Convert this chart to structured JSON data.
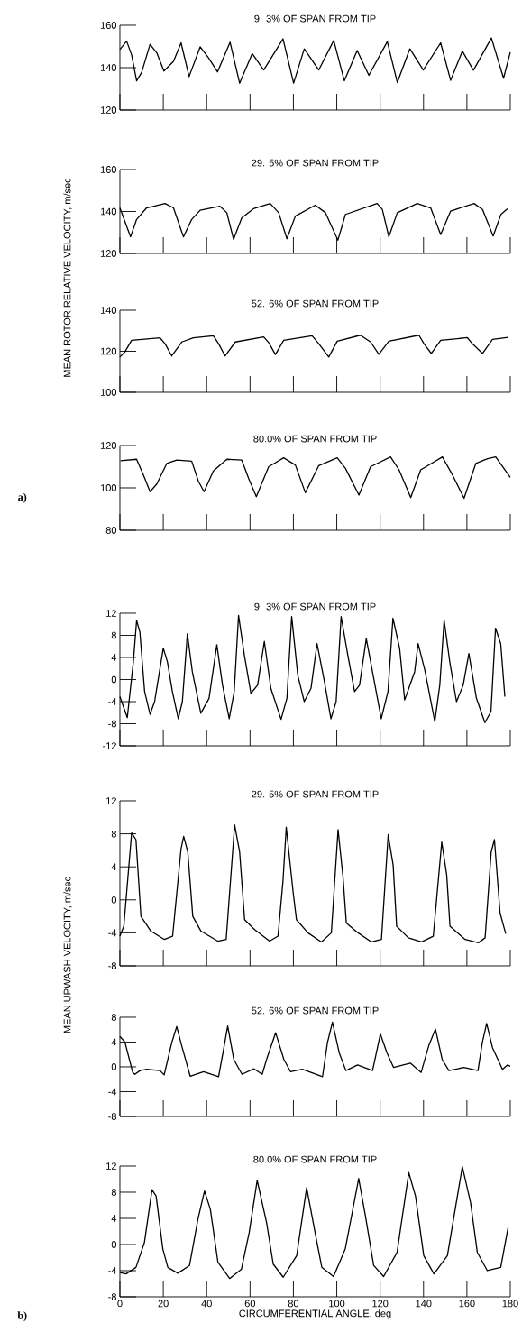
{
  "chart_data": [
    {
      "type": "line",
      "title": "9. 3% OF SPAN FROM TIP",
      "tick_labels": "y",
      "xlim": [
        0,
        180
      ],
      "xticks": [
        0,
        20,
        40,
        60,
        80,
        100,
        120,
        140,
        160,
        180
      ],
      "ylim": [
        120,
        160
      ],
      "yticks": [
        120,
        140,
        160
      ],
      "x": [
        0,
        3.1,
        5.4,
        7.7,
        10,
        13.9,
        17,
        20.3,
        24.7,
        28.2,
        31.9,
        37,
        40.8,
        45,
        50.8,
        55.2,
        61,
        66.3,
        75.2,
        80.1,
        85,
        91.7,
        98.6,
        103.5,
        109.4,
        114.8,
        123.3,
        127.9,
        133.7,
        139.9,
        147.9,
        152.5,
        157.9,
        163,
        171.3,
        176.9,
        180
      ],
      "series": [
        {
          "color": "#000000",
          "values": [
            148.6,
            152.5,
            146,
            133.8,
            137.7,
            151,
            147,
            138.4,
            143,
            151.7,
            135.8,
            149.8,
            144.7,
            138,
            152,
            132.7,
            146.6,
            138.9,
            153.6,
            132.7,
            148.9,
            138.9,
            152.8,
            133.8,
            148.1,
            136.4,
            152.3,
            133,
            148.9,
            138.9,
            151.7,
            134,
            147.8,
            138.8,
            154,
            135,
            147.3
          ]
        }
      ]
    },
    {
      "type": "line",
      "title": "29. 5% OF SPAN FROM TIP",
      "ylabel": "MEAN ROTOR RELATIVE VELOCITY, m/sec",
      "tick_labels": "y",
      "xlim": [
        0,
        180
      ],
      "xticks": [
        0,
        20,
        40,
        60,
        80,
        100,
        120,
        140,
        160,
        180
      ],
      "ylim": [
        120,
        160
      ],
      "yticks": [
        120,
        140,
        160
      ],
      "x": [
        0,
        4.9,
        7.7,
        12.3,
        20.8,
        24.7,
        29.3,
        33.1,
        37,
        46.2,
        49.3,
        52.4,
        56.2,
        61.6,
        69.3,
        73.2,
        77,
        80.9,
        90.1,
        94.8,
        100.5,
        104,
        118.6,
        121,
        124,
        127.9,
        137.1,
        143.3,
        147.9,
        152.5,
        163.3,
        167.2,
        172.1,
        175.7,
        178.7
      ],
      "series": [
        {
          "color": "#000000",
          "values": [
            141.7,
            127.9,
            136.2,
            141.7,
            143.8,
            141.7,
            127.9,
            136.2,
            140.6,
            142.5,
            139.4,
            126.7,
            137,
            141.3,
            143.8,
            139.4,
            127,
            137.8,
            143,
            139.4,
            126.3,
            138.6,
            143.8,
            141,
            127.9,
            139.4,
            143.8,
            141.7,
            129,
            140.2,
            143.8,
            141,
            128.3,
            138.6,
            141.3
          ]
        }
      ]
    },
    {
      "type": "line",
      "title": "52. 6% OF SPAN FROM TIP",
      "tick_labels": "y",
      "xlim": [
        0,
        180
      ],
      "xticks": [
        0,
        20,
        40,
        60,
        80,
        100,
        120,
        140,
        160,
        180
      ],
      "ylim": [
        100,
        140
      ],
      "yticks": [
        100,
        120,
        140
      ],
      "x": [
        0,
        2.3,
        5.4,
        18.5,
        20.8,
        23.9,
        28.5,
        33.9,
        43.1,
        45.5,
        48.5,
        53.2,
        66.3,
        68.6,
        71.7,
        75.5,
        88.6,
        91.7,
        96.3,
        100.2,
        110.9,
        115.6,
        119.4,
        124,
        137.9,
        140.2,
        143.6,
        147.9,
        160.2,
        162.5,
        167.2,
        171.8,
        179
      ],
      "series": [
        {
          "color": "#000000",
          "values": [
            117.2,
            119.7,
            125.3,
            126.5,
            123.7,
            117.7,
            124.5,
            126.5,
            127.5,
            123.7,
            117.7,
            124.5,
            127,
            124.2,
            118.4,
            125.3,
            127.5,
            123.7,
            117.2,
            124.9,
            127.8,
            124.5,
            118.5,
            124.9,
            127.8,
            123.7,
            118.9,
            125.3,
            126.6,
            123.7,
            118.9,
            125.8,
            126.8
          ]
        }
      ]
    },
    {
      "type": "line",
      "title": "80.0% OF SPAN FROM TIP",
      "annotations": [
        "a)"
      ],
      "tick_labels": "y",
      "xlim": [
        0,
        180
      ],
      "xticks": [
        0,
        20,
        40,
        60,
        80,
        100,
        120,
        140,
        160,
        180
      ],
      "ylim": [
        80,
        120
      ],
      "yticks": [
        80,
        100,
        120
      ],
      "x": [
        0.3,
        7.7,
        10.8,
        13.9,
        17,
        21.6,
        26.2,
        33.1,
        36.2,
        38.8,
        43.1,
        49.3,
        56.2,
        59.3,
        62.9,
        68.6,
        75.5,
        80.9,
        85.5,
        91.7,
        100.2,
        104,
        110.2,
        115.6,
        124.8,
        128.7,
        134.1,
        138.7,
        148.7,
        153.3,
        158.7,
        164.1,
        169.5,
        173.3,
        180
      ],
      "series": [
        {
          "color": "#000000",
          "values": [
            112.8,
            113.5,
            106.2,
            98.2,
            101.8,
            111.5,
            113.1,
            112.6,
            103.1,
            98.2,
            108,
            113.5,
            113.1,
            104.6,
            95.8,
            110,
            114.2,
            110.8,
            97.7,
            110.5,
            114.2,
            109.2,
            96.6,
            110,
            114.6,
            108.5,
            95.4,
            108.5,
            114.6,
            106.2,
            95.1,
            111.5,
            113.8,
            114.6,
            104.9
          ]
        }
      ]
    },
    {
      "type": "line",
      "title": "9. 3% OF SPAN FROM TIP",
      "tick_labels": "y",
      "xlim": [
        0,
        180
      ],
      "xticks": [
        0,
        20,
        40,
        60,
        80,
        100,
        120,
        140,
        160,
        180
      ],
      "ylim": [
        -12,
        12
      ],
      "yticks": [
        -12,
        -8,
        -4,
        0,
        4,
        8,
        12
      ],
      "x": [
        0,
        3.4,
        6.2,
        7.7,
        9.2,
        11.4,
        13.9,
        16,
        20,
        21.9,
        24.2,
        26.9,
        28.8,
        31.1,
        33.4,
        37.3,
        41.1,
        44.7,
        47.3,
        50.4,
        52.7,
        54.7,
        57.4,
        60.4,
        63.5,
        66.6,
        69.6,
        74.3,
        77,
        79.2,
        82,
        85,
        88.1,
        90.9,
        94.3,
        97.3,
        99.7,
        102,
        105.1,
        108.2,
        110.5,
        113.6,
        115.9,
        120.5,
        123.6,
        125.9,
        129,
        131.3,
        135.9,
        137.5,
        140.6,
        145.2,
        147.5,
        149.5,
        152.1,
        155.2,
        158.3,
        160.9,
        164.4,
        168.3,
        171.1,
        173.2,
        175.6,
        177.5
      ],
      "series": [
        {
          "color": "#000000",
          "values": [
            -3.1,
            -6.9,
            3.2,
            10.7,
            8.6,
            -2.2,
            -6.3,
            -4,
            5.7,
            3.2,
            -2.2,
            -7.1,
            -4,
            8.3,
            1.4,
            -6.1,
            -3.4,
            6.3,
            -1,
            -7.1,
            -2.2,
            11.6,
            4.4,
            -2.5,
            -1,
            6.9,
            -1.6,
            -7.2,
            -3.4,
            11.4,
            0.8,
            -4,
            -1.6,
            6.5,
            -0.4,
            -7.1,
            -4,
            11.4,
            4.4,
            -2.2,
            -1,
            7.4,
            2.6,
            -7.1,
            -2.2,
            11.1,
            5.6,
            -3.7,
            1.4,
            6.5,
            1.7,
            -7.6,
            -1,
            10.7,
            3.2,
            -4,
            -1,
            4.7,
            -3.4,
            -7.8,
            -5.8,
            9.3,
            6.5,
            -3.1
          ]
        }
      ]
    },
    {
      "type": "line",
      "title": "29. 5% OF SPAN FROM TIP",
      "ylabel": "MEAN UPWASH VELOCITY, m/sec",
      "tick_labels": "y",
      "xlim": [
        0,
        180
      ],
      "xticks": [
        0,
        20,
        40,
        60,
        80,
        100,
        120,
        140,
        160,
        180
      ],
      "ylim": [
        -8,
        12
      ],
      "yticks": [
        -8,
        -4,
        0,
        4,
        8,
        12
      ],
      "x": [
        0,
        1.8,
        5.4,
        7.4,
        9.7,
        14.3,
        20.5,
        24.3,
        28.2,
        29.4,
        31.3,
        33.6,
        37.4,
        45.1,
        49,
        52.9,
        55.2,
        57.5,
        62.1,
        69,
        72.9,
        75.2,
        76.7,
        79.8,
        81.4,
        86.7,
        92.9,
        97.5,
        100.6,
        102.9,
        104.4,
        109.8,
        116,
        120.6,
        123.7,
        126,
        127.6,
        133,
        139.1,
        144.5,
        148.4,
        150.7,
        152.2,
        159.2,
        165.3,
        168.4,
        171.2,
        172.7,
        175.3,
        177.9
      ],
      "series": [
        {
          "color": "#000000",
          "values": [
            -4.4,
            -3.2,
            8.1,
            7.3,
            -2,
            -3.8,
            -4.8,
            -4.4,
            6.2,
            7.7,
            5.8,
            -2,
            -3.8,
            -5,
            -4.8,
            9.1,
            5.8,
            -2.4,
            -3.6,
            -5,
            -4.4,
            2.3,
            8.8,
            1.1,
            -2.4,
            -4,
            -5.1,
            -4,
            8.5,
            2.7,
            -2.8,
            -4,
            -5.1,
            -4.8,
            7.9,
            4.2,
            -3.2,
            -4.6,
            -5.1,
            -4.4,
            7,
            3,
            -3.2,
            -4.8,
            -5.2,
            -4.6,
            5.8,
            7.3,
            -1.6,
            -4.1
          ]
        }
      ]
    },
    {
      "type": "line",
      "title": "52. 6% OF SPAN FROM TIP",
      "tick_labels": "y",
      "xlim": [
        0,
        180
      ],
      "xticks": [
        0,
        20,
        40,
        60,
        80,
        100,
        120,
        140,
        160,
        180
      ],
      "ylim": [
        -8,
        8
      ],
      "yticks": [
        -8,
        -4,
        0,
        4,
        8
      ],
      "x": [
        0,
        2.3,
        5.9,
        6.9,
        9.3,
        12.3,
        18.5,
        20.4,
        23.9,
        26.2,
        28.5,
        32.4,
        38.6,
        45.5,
        47.8,
        49.7,
        52.5,
        56.3,
        61.7,
        65.6,
        67.9,
        71.8,
        75.6,
        78.7,
        84.1,
        93.4,
        95.7,
        98,
        101.1,
        104.2,
        109.6,
        116.5,
        120.1,
        123.1,
        126.2,
        133.9,
        138.9,
        142.4,
        145.5,
        148.6,
        151.7,
        158.6,
        165.1,
        167.1,
        169.1,
        171.8,
        176.4,
        178.7,
        180
      ],
      "series": [
        {
          "color": "#000000",
          "values": [
            4.9,
            4,
            -0.9,
            -1.2,
            -0.6,
            -0.4,
            -0.6,
            -1.3,
            3.9,
            6.5,
            3.4,
            -1.5,
            -0.8,
            -1.6,
            2.8,
            6.6,
            1.2,
            -1.2,
            -0.3,
            -1.2,
            1.5,
            5.5,
            1.2,
            -0.8,
            -0.4,
            -1.6,
            3.9,
            7.2,
            2.3,
            -0.6,
            0.3,
            -0.6,
            5.3,
            2.3,
            -0.1,
            0.6,
            -0.9,
            3.4,
            6.1,
            1.2,
            -0.6,
            -0.1,
            -0.6,
            3.9,
            7,
            3.1,
            -0.4,
            0.3,
            0.1
          ]
        }
      ]
    },
    {
      "type": "line",
      "title": "80.0% OF SPAN FROM TIP",
      "xlabel": "CIRCUMFERENTIAL ANGLE, deg",
      "annotations": [
        "b)"
      ],
      "xlim": [
        0,
        180
      ],
      "xticks": [
        0,
        20,
        40,
        60,
        80,
        100,
        120,
        140,
        160,
        180
      ],
      "ylim": [
        -8,
        12
      ],
      "yticks": [
        -8,
        -4,
        0,
        4,
        8,
        12
      ],
      "x": [
        0,
        2.8,
        7.4,
        11.3,
        14.8,
        16.7,
        19.8,
        22.1,
        26.7,
        32.1,
        36,
        39,
        41.7,
        45.2,
        50.6,
        56,
        59.6,
        63.3,
        67.6,
        70.7,
        75.3,
        81.5,
        86.1,
        90,
        93.1,
        98.5,
        103.9,
        110.1,
        113.2,
        117,
        121.6,
        127.8,
        133.2,
        136.3,
        140.1,
        144.8,
        151,
        157.9,
        161.7,
        164.8,
        169.4,
        175.6,
        179
      ],
      "series": [
        {
          "color": "#000000",
          "values": [
            -4.3,
            -4.5,
            -3.5,
            0.3,
            8.4,
            7.4,
            -0.7,
            -3.5,
            -4.4,
            -3.2,
            3.9,
            8.2,
            5.4,
            -2.7,
            -5.2,
            -3.8,
            1.8,
            9.8,
            3.4,
            -3,
            -5,
            -1.7,
            8.7,
            1.8,
            -3.5,
            -4.9,
            -0.7,
            10.1,
            4.4,
            -3.2,
            -4.9,
            -1.2,
            11,
            7.4,
            -1.7,
            -4.5,
            -1.7,
            11.9,
            6.4,
            -1.2,
            -4,
            -3.5,
            2.6
          ]
        }
      ]
    }
  ]
}
